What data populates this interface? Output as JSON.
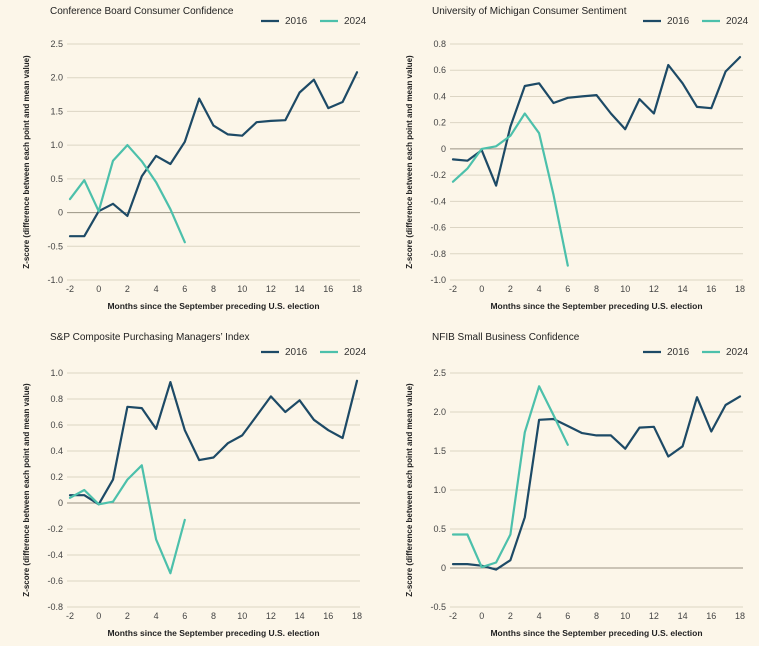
{
  "colors": {
    "s2016": "#1d4a66",
    "s2024": "#4cc0ab"
  },
  "chart_data": [
    {
      "type": "line",
      "title": "Conference Board Consumer Confidence",
      "xlabel": "Months since the September preceding U.S. election",
      "ylabel": "Z-score (difference between each point and mean value)",
      "xlim": [
        -2,
        18
      ],
      "xticks": [
        -2,
        0,
        2,
        4,
        6,
        8,
        10,
        12,
        14,
        16,
        18
      ],
      "ylim": [
        -1.0,
        2.5
      ],
      "yticks": [
        "-1.0",
        "-0.5",
        "0",
        "0.5",
        "1.0",
        "1.5",
        "2.0",
        "2.5"
      ],
      "legend_position": "top-right",
      "series": [
        {
          "name": "2016",
          "color_key": "s2016",
          "x": [
            -2,
            -1,
            0,
            1,
            2,
            3,
            4,
            5,
            6,
            7,
            8,
            9,
            10,
            11,
            12,
            13,
            14,
            15,
            16,
            17,
            18
          ],
          "y": [
            -0.35,
            -0.35,
            0.02,
            0.13,
            -0.05,
            0.54,
            0.84,
            0.72,
            1.05,
            1.69,
            1.29,
            1.16,
            1.14,
            1.34,
            1.36,
            1.37,
            1.78,
            1.97,
            1.55,
            1.64,
            2.08
          ]
        },
        {
          "name": "2024",
          "color_key": "s2024",
          "x": [
            -2,
            -1,
            0,
            1,
            2,
            3,
            4,
            5,
            6
          ],
          "y": [
            0.2,
            0.48,
            0.02,
            0.77,
            1.0,
            0.76,
            0.45,
            0.05,
            -0.44
          ]
        }
      ]
    },
    {
      "type": "line",
      "title": "University of Michigan Consumer Sentiment",
      "xlabel": "Months since the September preceding U.S. election",
      "ylabel": "Z-score (difference between each point and mean value)",
      "xlim": [
        -2,
        18
      ],
      "xticks": [
        -2,
        0,
        2,
        4,
        6,
        8,
        10,
        12,
        14,
        16,
        18
      ],
      "ylim": [
        -1.0,
        0.8
      ],
      "yticks": [
        "-1.0",
        "-0.8",
        "-0.6",
        "-0.4",
        "-0.2",
        "0",
        "0.2",
        "0.4",
        "0.6",
        "0.8"
      ],
      "legend_position": "top-right",
      "series": [
        {
          "name": "2016",
          "color_key": "s2016",
          "x": [
            -2,
            -1,
            0,
            1,
            2,
            3,
            4,
            5,
            6,
            7,
            8,
            9,
            10,
            11,
            12,
            13,
            14,
            15,
            16,
            17,
            18
          ],
          "y": [
            -0.08,
            -0.09,
            -0.01,
            -0.28,
            0.17,
            0.48,
            0.5,
            0.35,
            0.39,
            0.4,
            0.41,
            0.27,
            0.15,
            0.38,
            0.27,
            0.64,
            0.5,
            0.32,
            0.31,
            0.59,
            0.7
          ]
        },
        {
          "name": "2024",
          "color_key": "s2024",
          "x": [
            -2,
            -1,
            0,
            1,
            2,
            3,
            4,
            5,
            6
          ],
          "y": [
            -0.25,
            -0.15,
            0.0,
            0.02,
            0.1,
            0.27,
            0.12,
            -0.35,
            -0.89
          ]
        }
      ]
    },
    {
      "type": "line",
      "title": "S&P Composite Purchasing Managers’ Index",
      "xlabel": "Months since the September preceding U.S. election",
      "ylabel": "Z-score (difference between each point and mean value)",
      "xlim": [
        -2,
        18
      ],
      "xticks": [
        -2,
        0,
        2,
        4,
        6,
        8,
        10,
        12,
        14,
        16,
        18
      ],
      "ylim": [
        -0.8,
        1.0
      ],
      "yticks": [
        "-0.8",
        "-0.6",
        "-0.4",
        "-0.2",
        "0",
        "0.2",
        "0.4",
        "0.6",
        "0.8",
        "1.0"
      ],
      "legend_position": "top-right",
      "series": [
        {
          "name": "2016",
          "color_key": "s2016",
          "x": [
            -2,
            -1,
            0,
            1,
            2,
            3,
            4,
            5,
            6,
            7,
            8,
            9,
            10,
            11,
            12,
            13,
            14,
            15,
            16,
            17,
            18
          ],
          "y": [
            0.06,
            0.06,
            -0.01,
            0.18,
            0.74,
            0.73,
            0.57,
            0.93,
            0.56,
            0.33,
            0.35,
            0.46,
            0.52,
            0.67,
            0.82,
            0.7,
            0.79,
            0.64,
            0.56,
            0.5,
            0.94
          ]
        },
        {
          "name": "2024",
          "color_key": "s2024",
          "x": [
            -2,
            -1,
            0,
            1,
            2,
            3,
            4,
            5,
            6
          ],
          "y": [
            0.04,
            0.1,
            -0.01,
            0.01,
            0.18,
            0.29,
            -0.28,
            -0.54,
            -0.13
          ]
        }
      ]
    },
    {
      "type": "line",
      "title": "NFIB Small Business Confidence",
      "xlabel": "Months since the September preceding U.S. election",
      "ylabel": "Z-score (difference between each point and mean value)",
      "xlim": [
        -2,
        18
      ],
      "xticks": [
        -2,
        0,
        2,
        4,
        6,
        8,
        10,
        12,
        14,
        16,
        18
      ],
      "ylim": [
        -0.5,
        2.5
      ],
      "yticks": [
        "-0.5",
        "0",
        "0.5",
        "1.0",
        "1.5",
        "2.0",
        "2.5"
      ],
      "legend_position": "top-right",
      "series": [
        {
          "name": "2016",
          "color_key": "s2016",
          "x": [
            -2,
            -1,
            0,
            1,
            2,
            3,
            4,
            5,
            6,
            7,
            8,
            9,
            10,
            11,
            12,
            13,
            14,
            15,
            16,
            17,
            18
          ],
          "y": [
            0.05,
            0.05,
            0.03,
            -0.02,
            0.1,
            0.65,
            1.9,
            1.91,
            1.82,
            1.73,
            1.7,
            1.7,
            1.53,
            1.8,
            1.81,
            1.43,
            1.56,
            2.19,
            1.75,
            2.09,
            2.2
          ]
        },
        {
          "name": "2024",
          "color_key": "s2024",
          "x": [
            -2,
            -1,
            0,
            1,
            2,
            3,
            4,
            5,
            6
          ],
          "y": [
            0.43,
            0.43,
            0.01,
            0.07,
            0.43,
            1.74,
            2.33,
            1.96,
            1.58
          ]
        }
      ]
    }
  ]
}
